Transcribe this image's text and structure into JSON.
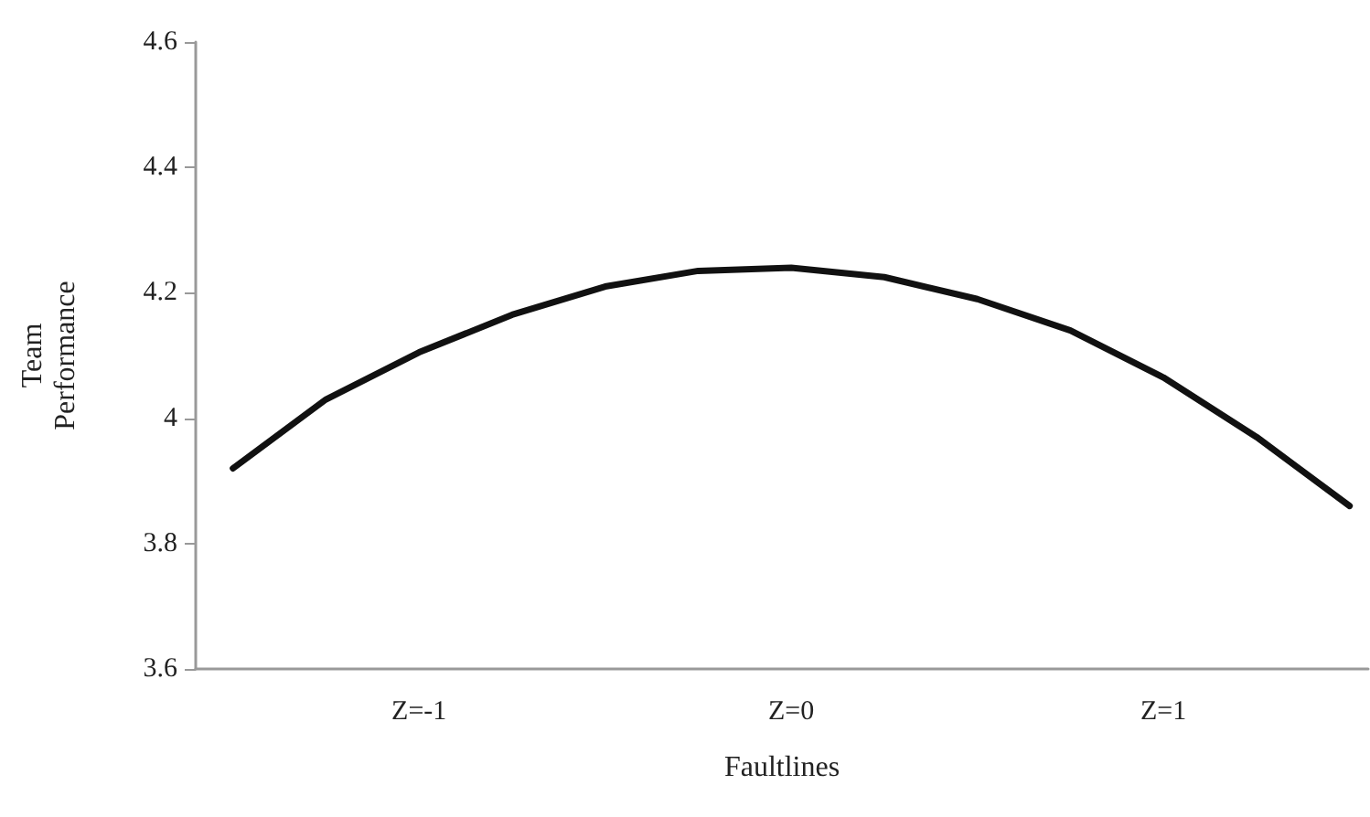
{
  "chart_data": {
    "type": "line",
    "xlabel": "Faultlines",
    "ylabel": "Team Performance",
    "x": [
      -1.5,
      -1.25,
      -1,
      -0.75,
      -0.5,
      -0.25,
      0,
      0.25,
      0.5,
      0.75,
      1,
      1.25,
      1.5
    ],
    "series": [
      {
        "color": "#111111",
        "values": [
          3.92,
          4.03,
          4.105,
          4.165,
          4.21,
          4.235,
          4.24,
          4.225,
          4.19,
          4.14,
          4.065,
          3.97,
          3.86
        ]
      }
    ],
    "xlim": [
      -1.6,
      1.55
    ],
    "xticks": [
      {
        "value": -1,
        "label": "Z=-1"
      },
      {
        "value": 0,
        "label": "Z=0"
      },
      {
        "value": 1,
        "label": "Z=1"
      }
    ],
    "ylim": [
      3.6,
      4.6
    ],
    "yticks": [
      3.6,
      3.8,
      4,
      4.2,
      4.4,
      4.6
    ],
    "grid": false,
    "marker": "none",
    "line_style": "solid"
  }
}
